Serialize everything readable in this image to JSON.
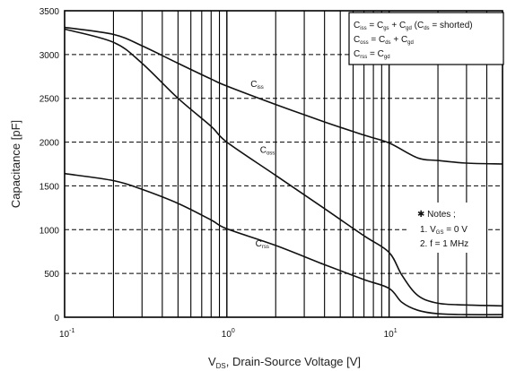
{
  "chart_data": {
    "type": "line",
    "title": "",
    "xlabel": {
      "main": "V",
      "sub": "DS",
      "rest": ", Drain-Source Voltage [V]"
    },
    "ylabel": "Capacitance [pF]",
    "x_scale": "log",
    "xlim": [
      0.1,
      50
    ],
    "ylim": [
      0,
      3500
    ],
    "y_ticks": [
      0,
      500,
      1000,
      1500,
      2000,
      2500,
      3000,
      3500
    ],
    "x_ticks": [
      {
        "value": 0.1,
        "base": "10",
        "exp": "-1"
      },
      {
        "value": 1,
        "base": "10",
        "exp": "0"
      },
      {
        "value": 10,
        "base": "10",
        "exp": "1"
      }
    ],
    "grid": true,
    "series": [
      {
        "name": "C_iss",
        "label": {
          "main": "C",
          "sub": "iss"
        },
        "label_at": {
          "x": 1.4,
          "y": 2630
        },
        "points": [
          [
            0.1,
            3310
          ],
          [
            0.2,
            3230
          ],
          [
            0.3,
            3100
          ],
          [
            0.5,
            2900
          ],
          [
            0.8,
            2720
          ],
          [
            1,
            2640
          ],
          [
            2,
            2430
          ],
          [
            4,
            2230
          ],
          [
            7,
            2080
          ],
          [
            10,
            1990
          ],
          [
            15,
            1820
          ],
          [
            20,
            1790
          ],
          [
            30,
            1760
          ],
          [
            50,
            1750
          ]
        ]
      },
      {
        "name": "C_oss",
        "label": {
          "main": "C",
          "sub": "oss"
        },
        "label_at": {
          "x": 1.6,
          "y": 1880
        },
        "points": [
          [
            0.1,
            3290
          ],
          [
            0.2,
            3140
          ],
          [
            0.3,
            2900
          ],
          [
            0.5,
            2500
          ],
          [
            0.8,
            2180
          ],
          [
            1,
            2000
          ],
          [
            2,
            1620
          ],
          [
            4,
            1240
          ],
          [
            7,
            930
          ],
          [
            10,
            740
          ],
          [
            12,
            480
          ],
          [
            15,
            250
          ],
          [
            20,
            160
          ],
          [
            30,
            140
          ],
          [
            50,
            130
          ]
        ]
      },
      {
        "name": "C_rss",
        "label": {
          "main": "C",
          "sub": "rss"
        },
        "label_at": {
          "x": 1.5,
          "y": 810
        },
        "points": [
          [
            0.1,
            1640
          ],
          [
            0.2,
            1560
          ],
          [
            0.3,
            1460
          ],
          [
            0.5,
            1300
          ],
          [
            0.8,
            1110
          ],
          [
            1,
            1010
          ],
          [
            2,
            820
          ],
          [
            4,
            600
          ],
          [
            7,
            430
          ],
          [
            10,
            330
          ],
          [
            12,
            170
          ],
          [
            15,
            80
          ],
          [
            20,
            40
          ],
          [
            30,
            30
          ],
          [
            50,
            30
          ]
        ]
      }
    ],
    "legend": {
      "placement": "top-right",
      "entries": [
        {
          "lhs": "C",
          "lhs_sub": "iss",
          "rest": " = C",
          "rest_sub": "gs",
          "rest2": " + C",
          "rest2_sub": "gd",
          "tail": " (C",
          "tail_sub": "ds",
          "tail_end": " = shorted)"
        },
        {
          "lhs": "C",
          "lhs_sub": "oss",
          "rest": " = C",
          "rest_sub": "ds",
          "rest2": " + C",
          "rest2_sub": "gd"
        },
        {
          "lhs": "C",
          "lhs_sub": "rss",
          "rest": " = C",
          "rest_sub": "gd"
        }
      ]
    },
    "notes": {
      "title": "✱ Notes ;",
      "line1": {
        "pre": "1. V",
        "sub": "GS",
        "post": " = 0 V"
      },
      "line2": "2. f = 1 MHz"
    }
  }
}
